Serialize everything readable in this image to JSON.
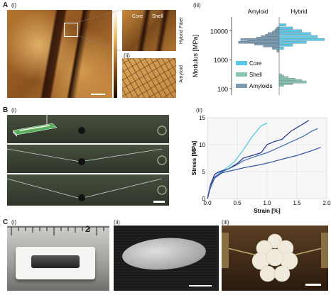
{
  "panelA": {
    "letter": "A",
    "sub_i": "(i)",
    "sub_ii": "(ii)",
    "sub_iii": "(iii)",
    "side_hybrid": "Hybrid Fiber",
    "side_amyloid": "Amyloid",
    "inset_core": "Core",
    "inset_shell": "Shell"
  },
  "panelB": {
    "letter": "B",
    "sub_i": "(i)",
    "sub_ii": "(ii)"
  },
  "panelC": {
    "letter": "C",
    "sub_i": "(i)",
    "sub_ii": "(ii)",
    "sub_iii": "(iii)",
    "ruler_mark": "2"
  },
  "chart_data": [
    {
      "type": "bar",
      "orientation": "horizontal",
      "left_label": "Amyloid",
      "right_label": "Hybrid",
      "ylabel": "Modulus [MPa]",
      "yscale": "log",
      "ylim": [
        60,
        30000
      ],
      "yticks": [
        {
          "value": 100,
          "label": "100"
        },
        {
          "value": 1000,
          "label": "1000"
        },
        {
          "value": 10000,
          "label": "10000"
        }
      ],
      "legend": [
        "Core",
        "Shell",
        "Amyloids"
      ],
      "colors": {
        "Core": "#5bc8e6",
        "Shell": "#8cc4b3",
        "Amyloids": "#7f9bb0"
      },
      "series": [
        {
          "name": "Amyloids",
          "side": "left",
          "bins": [
            [
              2000,
              0.05
            ],
            [
              2500,
              0.15
            ],
            [
              3000,
              0.35
            ],
            [
              3500,
              0.55
            ],
            [
              4000,
              0.9
            ],
            [
              4500,
              0.7
            ],
            [
              5000,
              0.85
            ],
            [
              5600,
              0.5
            ],
            [
              6300,
              0.4
            ],
            [
              7000,
              0.3
            ],
            [
              8000,
              0.25
            ],
            [
              9000,
              0.15
            ],
            [
              10000,
              0.1
            ],
            [
              11000,
              0.08
            ],
            [
              12500,
              0.05
            ]
          ]
        },
        {
          "name": "Core",
          "side": "right",
          "bins": [
            [
              2500,
              0.1
            ],
            [
              3200,
              0.3
            ],
            [
              4000,
              0.6
            ],
            [
              5000,
              1.0
            ],
            [
              6300,
              0.85
            ],
            [
              8000,
              0.7
            ],
            [
              10000,
              0.5
            ],
            [
              12500,
              0.3
            ],
            [
              16000,
              0.15
            ]
          ]
        },
        {
          "name": "Shell",
          "side": "right",
          "bins": [
            [
              130,
              0.1
            ],
            [
              150,
              0.3
            ],
            [
              170,
              0.6
            ],
            [
              190,
              0.5
            ],
            [
              210,
              0.35
            ],
            [
              240,
              0.2
            ],
            [
              270,
              0.1
            ],
            [
              300,
              0.05
            ]
          ]
        }
      ]
    },
    {
      "type": "line",
      "xlabel": "Strain [%]",
      "ylabel": "Stress [MPa]",
      "xlim": [
        0,
        2
      ],
      "ylim": [
        0,
        15
      ],
      "xticks": [
        "0.0",
        "0.5",
        "1.0",
        "1.5",
        "2.0"
      ],
      "yticks": [
        "0",
        "5",
        "10",
        "15"
      ],
      "series": [
        {
          "color": "#5bc8e6",
          "points": [
            [
              0,
              0
            ],
            [
              0.05,
              2
            ],
            [
              0.1,
              3.5
            ],
            [
              0.2,
              4.8
            ],
            [
              0.3,
              5.5
            ],
            [
              0.45,
              6.8
            ],
            [
              0.6,
              9
            ],
            [
              0.75,
              11.5
            ],
            [
              0.9,
              13.5
            ],
            [
              1.0,
              14
            ]
          ]
        },
        {
          "color": "#2e3f8f",
          "points": [
            [
              0,
              0
            ],
            [
              0.05,
              2.5
            ],
            [
              0.12,
              4.5
            ],
            [
              0.2,
              5
            ],
            [
              0.35,
              5.5
            ],
            [
              0.5,
              6.5
            ],
            [
              0.6,
              7.5
            ],
            [
              0.75,
              8
            ],
            [
              0.9,
              8.5
            ],
            [
              1.0,
              10
            ],
            [
              1.1,
              10.5
            ],
            [
              1.25,
              11
            ],
            [
              1.4,
              12.5
            ],
            [
              1.55,
              13.5
            ],
            [
              1.7,
              14.5
            ]
          ]
        },
        {
          "color": "#4a6fb0",
          "points": [
            [
              0,
              0
            ],
            [
              0.05,
              2.2
            ],
            [
              0.12,
              4
            ],
            [
              0.25,
              5
            ],
            [
              0.45,
              6
            ],
            [
              0.6,
              7
            ],
            [
              0.8,
              7.8
            ],
            [
              1.0,
              8.5
            ],
            [
              1.2,
              9.5
            ],
            [
              1.4,
              10.5
            ],
            [
              1.6,
              11.5
            ],
            [
              1.75,
              12.5
            ],
            [
              1.85,
              13
            ]
          ]
        },
        {
          "color": "#3a5aa8",
          "points": [
            [
              0,
              0
            ],
            [
              0.05,
              2
            ],
            [
              0.12,
              3.8
            ],
            [
              0.25,
              4.8
            ],
            [
              0.45,
              5.3
            ],
            [
              0.65,
              5.8
            ],
            [
              0.85,
              6.2
            ],
            [
              1.05,
              6.7
            ],
            [
              1.25,
              7.3
            ],
            [
              1.5,
              8
            ],
            [
              1.7,
              8.7
            ],
            [
              1.9,
              9.5
            ]
          ]
        }
      ]
    }
  ]
}
